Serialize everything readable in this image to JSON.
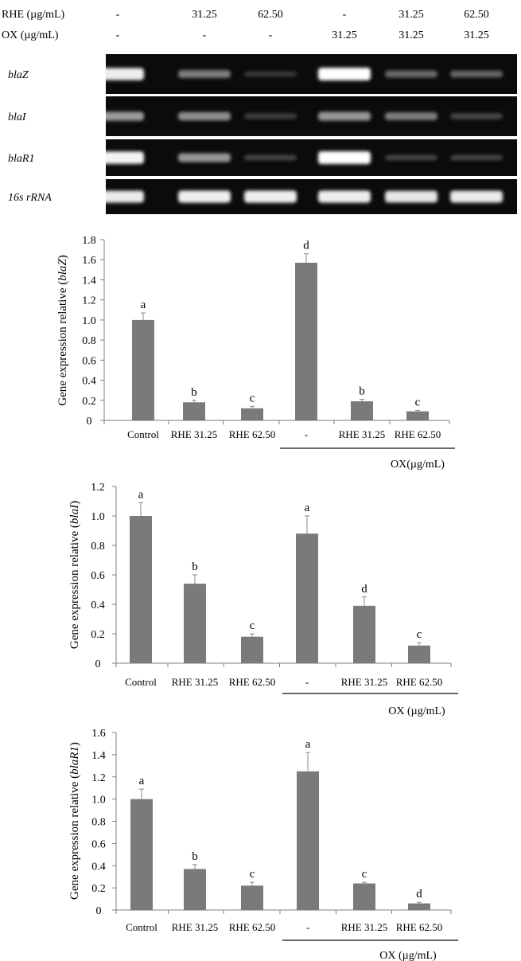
{
  "gel": {
    "header_rows": [
      {
        "label": "RHE (µg/mL)",
        "values": [
          "-",
          "31.25",
          "62.50",
          "-",
          "31.25",
          "62.50"
        ]
      },
      {
        "label": "OX (µg/mL)",
        "values": [
          "-",
          "-",
          "-",
          "31.25",
          "31.25",
          "31.25"
        ]
      }
    ],
    "rows": [
      {
        "gene": "blaZ",
        "intensity": [
          0.92,
          0.38,
          0.05,
          1.0,
          0.28,
          0.26
        ]
      },
      {
        "gene": "blaI",
        "intensity": [
          0.52,
          0.46,
          0.08,
          0.5,
          0.38,
          0.12
        ]
      },
      {
        "gene": "blaR1",
        "intensity": [
          0.95,
          0.5,
          0.1,
          1.0,
          0.1,
          0.1
        ]
      },
      {
        "gene": "16s rRNA",
        "intensity": [
          0.9,
          0.92,
          0.92,
          0.92,
          0.88,
          0.9
        ]
      }
    ],
    "colors": {
      "background": "#0b0b0b",
      "band": "#ffffff"
    }
  },
  "chart_data": [
    {
      "type": "bar",
      "ylabel_prefix": "Gene expression relative (",
      "gene": "blaZ",
      "ylabel_suffix": ")",
      "categories": [
        "Control",
        "RHE 31.25",
        "RHE 62.50",
        "-",
        "RHE 31.25",
        "RHE 62.50"
      ],
      "values": [
        1.0,
        0.18,
        0.12,
        1.57,
        0.19,
        0.09
      ],
      "errors": [
        0.07,
        0.02,
        0.02,
        0.09,
        0.02,
        0.01
      ],
      "letters": [
        "a",
        "b",
        "c",
        "d",
        "b",
        "c"
      ],
      "ylim": [
        0,
        1.8
      ],
      "yticks": [
        "0",
        "0.2",
        "0.4",
        "0.6",
        "0.8",
        "1.0",
        "1.2",
        "1.4",
        "1.6",
        "1.8"
      ],
      "group_label": "OX(µg/mL)",
      "bar_color": "#7a7a7a"
    },
    {
      "type": "bar",
      "ylabel_prefix": "Gene expression relative (",
      "gene": "blaI",
      "ylabel_suffix": ")",
      "categories": [
        "Control",
        "RHE 31.25",
        "RHE 62.50",
        "-",
        "RHE 31.25",
        "RHE 62.50"
      ],
      "values": [
        1.0,
        0.54,
        0.18,
        0.88,
        0.39,
        0.12
      ],
      "errors": [
        0.09,
        0.06,
        0.02,
        0.12,
        0.06,
        0.02
      ],
      "letters": [
        "a",
        "b",
        "c",
        "a",
        "d",
        "c"
      ],
      "ylim": [
        0,
        1.2
      ],
      "yticks": [
        "0",
        "0.2",
        "0.4",
        "0.6",
        "0.8",
        "1.0",
        "1.2"
      ],
      "group_label": "OX (µg/mL)",
      "bar_color": "#7a7a7a"
    },
    {
      "type": "bar",
      "ylabel_prefix": "Gene expression relative (",
      "gene": "blaR1",
      "ylabel_suffix": ")",
      "categories": [
        "Control",
        "RHE 31.25",
        "RHE 62.50",
        "-",
        "RHE 31.25",
        "RHE 62.50"
      ],
      "values": [
        1.0,
        0.37,
        0.22,
        1.25,
        0.24,
        0.06
      ],
      "errors": [
        0.09,
        0.04,
        0.03,
        0.17,
        0.01,
        0.01
      ],
      "letters": [
        "a",
        "b",
        "c",
        "a",
        "c",
        "d"
      ],
      "ylim": [
        0,
        1.6
      ],
      "yticks": [
        "0",
        "0.2",
        "0.4",
        "0.6",
        "0.8",
        "1.0",
        "1.2",
        "1.4",
        "1.6"
      ],
      "group_label": "OX (µg/mL)",
      "bar_color": "#7a7a7a"
    }
  ]
}
